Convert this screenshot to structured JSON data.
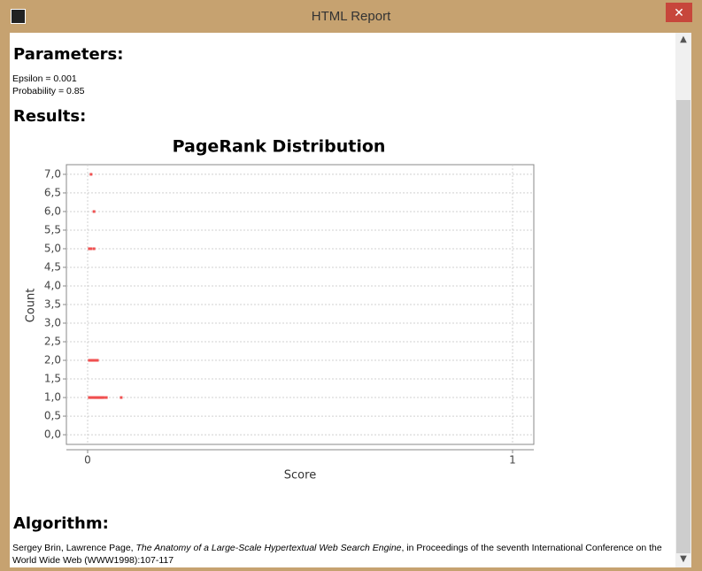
{
  "window": {
    "title": "HTML Report"
  },
  "parameters": {
    "heading": "Parameters:",
    "lines": [
      "Epsilon = 0.001",
      "Probability = 0.85"
    ]
  },
  "results": {
    "heading": "Results:"
  },
  "chart_data": {
    "type": "scatter",
    "title": "PageRank Distribution",
    "x_label": "Score",
    "y_label": "Count",
    "series": [
      {
        "color": "#f05050",
        "x": [
          0.008,
          0.015,
          0.004,
          0.008,
          0.015,
          0.004,
          0.008,
          0.011,
          0.015,
          0.019,
          0.023,
          0.004,
          0.006,
          0.008,
          0.01,
          0.013,
          0.015,
          0.017,
          0.019,
          0.021,
          0.023,
          0.025,
          0.027,
          0.029,
          0.031,
          0.033,
          0.035,
          0.038,
          0.044,
          0.079
        ],
        "values": [
          7,
          6,
          5,
          5,
          5,
          2,
          2,
          2,
          2,
          2,
          2,
          1,
          1,
          1,
          1,
          1,
          1,
          1,
          1,
          1,
          1,
          1,
          1,
          1,
          1,
          1,
          1,
          1,
          1,
          1
        ]
      }
    ],
    "xlim": [
      -0.05,
      1.05
    ],
    "xticks": [
      0,
      1
    ],
    "ylim": [
      -0.26,
      7.26
    ],
    "yticks": [
      {
        "value": 0,
        "label": "0,0"
      },
      {
        "value": 0.5,
        "label": "0,5"
      },
      {
        "value": 1,
        "label": "1,0"
      },
      {
        "value": 1.5,
        "label": "1,5"
      },
      {
        "value": 2,
        "label": "2,0"
      },
      {
        "value": 2.5,
        "label": "2,5"
      },
      {
        "value": 3,
        "label": "3,0"
      },
      {
        "value": 3.5,
        "label": "3,5"
      },
      {
        "value": 4,
        "label": "4,0"
      },
      {
        "value": 4.5,
        "label": "4,5"
      },
      {
        "value": 5,
        "label": "5,0"
      },
      {
        "value": 5.5,
        "label": "5,5"
      },
      {
        "value": 6,
        "label": "6,0"
      },
      {
        "value": 6.5,
        "label": "6,5"
      },
      {
        "value": 7,
        "label": "7,0"
      }
    ],
    "grid": true
  },
  "algorithm": {
    "heading": "Algorithm:",
    "authors": "Sergey Brin, Lawrence Page, ",
    "paper_title": "The Anatomy of a Large-Scale Hypertextual Web Search Engine",
    "venue": ", in Proceedings of the seventh International Conference on the World Wide Web (WWW1998):107-117"
  }
}
